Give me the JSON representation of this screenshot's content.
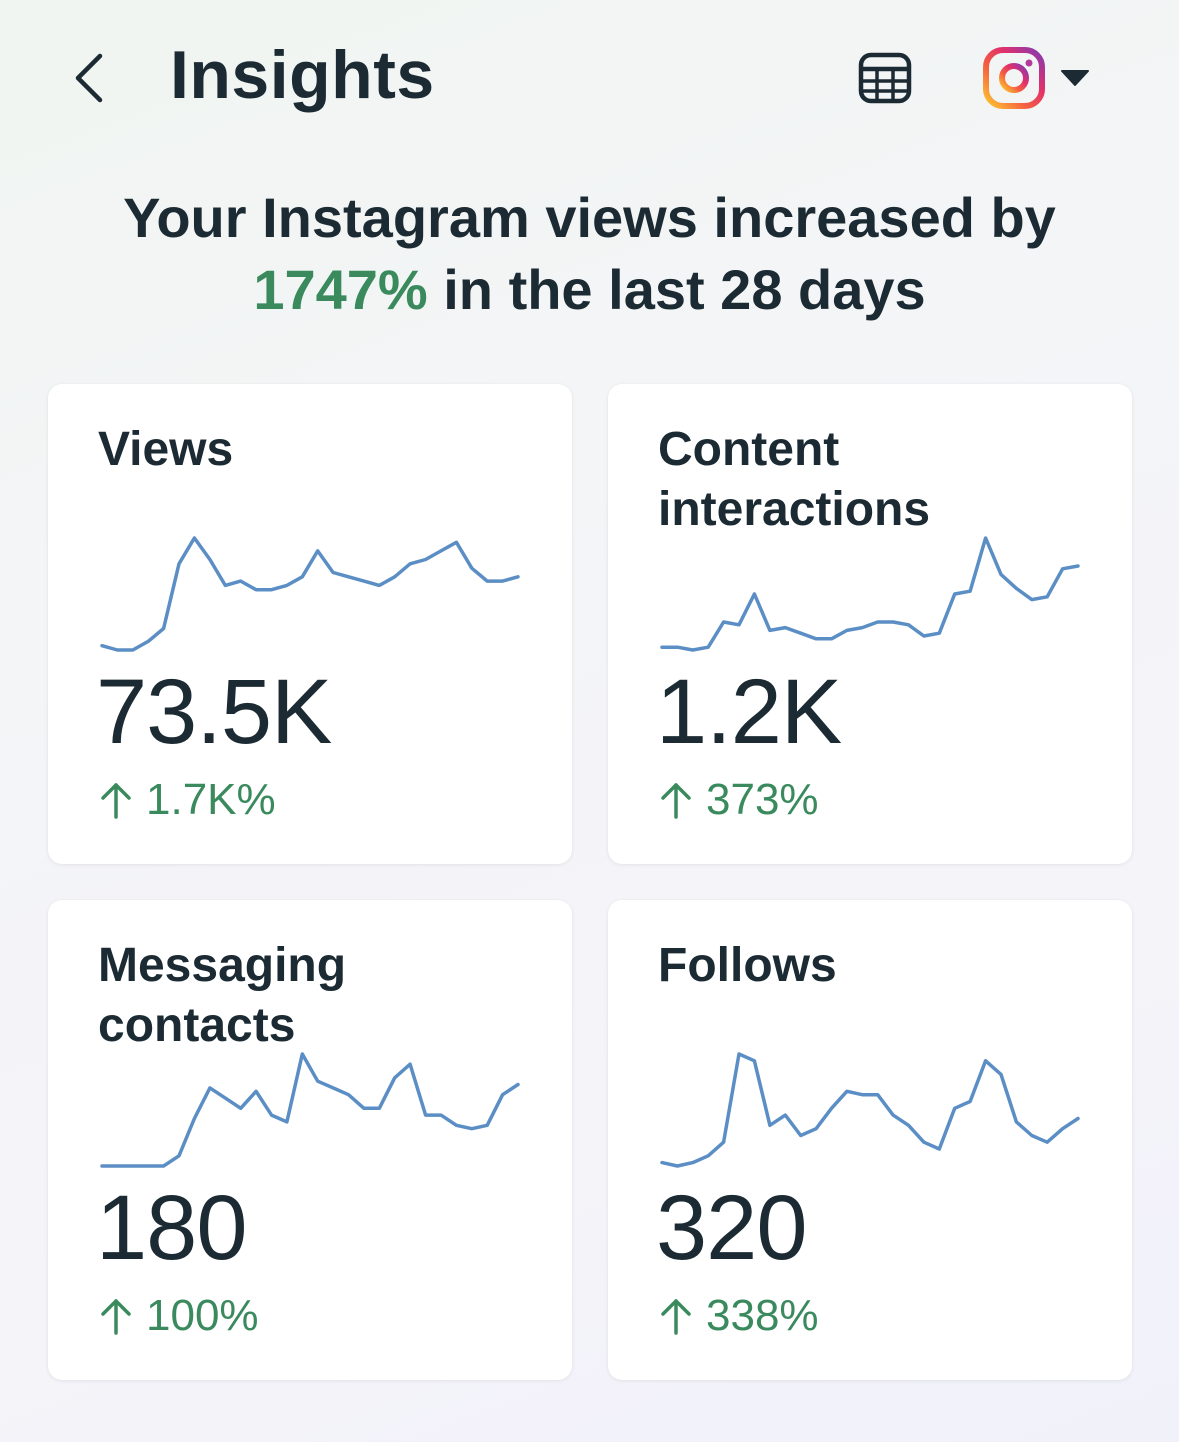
{
  "header": {
    "title": "Insights",
    "back_icon": "chevron-left-icon",
    "table_icon": "table-icon",
    "account_icon": "instagram-icon",
    "dropdown_icon": "caret-down-icon"
  },
  "headline": {
    "prefix": "Your Instagram views increased by",
    "highlight": "1747%",
    "suffix": " in the last 28 days",
    "highlight_color": "#3a8a5e"
  },
  "colors": {
    "accent": "#3a8a5e",
    "sparkline": "#5b8ec4",
    "text": "#1c2b33"
  },
  "cards": [
    {
      "title": "Views",
      "value": "73.5K",
      "change": "1.7K%",
      "trend_icon": "arrow-up-icon",
      "chart_data": {
        "type": "line",
        "y": [
          2,
          1,
          1,
          3,
          6,
          21,
          27,
          22,
          16,
          17,
          15,
          15,
          16,
          18,
          24,
          19,
          18,
          17,
          16,
          18,
          21,
          22,
          24,
          26,
          20,
          17,
          17,
          18
        ]
      }
    },
    {
      "title": "Content interactions",
      "value": "1.2K",
      "change": "373%",
      "trend_icon": "arrow-up-icon",
      "chart_data": {
        "type": "line",
        "y": [
          4,
          4,
          3,
          4,
          13,
          12,
          23,
          10,
          11,
          9,
          7,
          7,
          10,
          11,
          13,
          13,
          12,
          8,
          9,
          23,
          24,
          43,
          30,
          25,
          21,
          22,
          32,
          33
        ]
      }
    },
    {
      "title": "Messaging contacts",
      "value": "180",
      "change": "100%",
      "trend_icon": "arrow-up-icon",
      "chart_data": {
        "type": "line",
        "y": [
          0,
          0,
          0,
          0,
          0,
          3,
          14,
          23,
          20,
          17,
          22,
          15,
          13,
          33,
          25,
          23,
          21,
          17,
          17,
          26,
          30,
          15,
          15,
          12,
          11,
          12,
          21,
          24
        ]
      }
    },
    {
      "title": "Follows",
      "value": "320",
      "change": "338%",
      "trend_icon": "arrow-up-icon",
      "chart_data": {
        "type": "line",
        "y": [
          4,
          3,
          4,
          6,
          10,
          36,
          34,
          15,
          18,
          12,
          14,
          20,
          25,
          24,
          24,
          18,
          15,
          10,
          8,
          20,
          22,
          34,
          30,
          16,
          12,
          10,
          14,
          17
        ]
      }
    }
  ]
}
